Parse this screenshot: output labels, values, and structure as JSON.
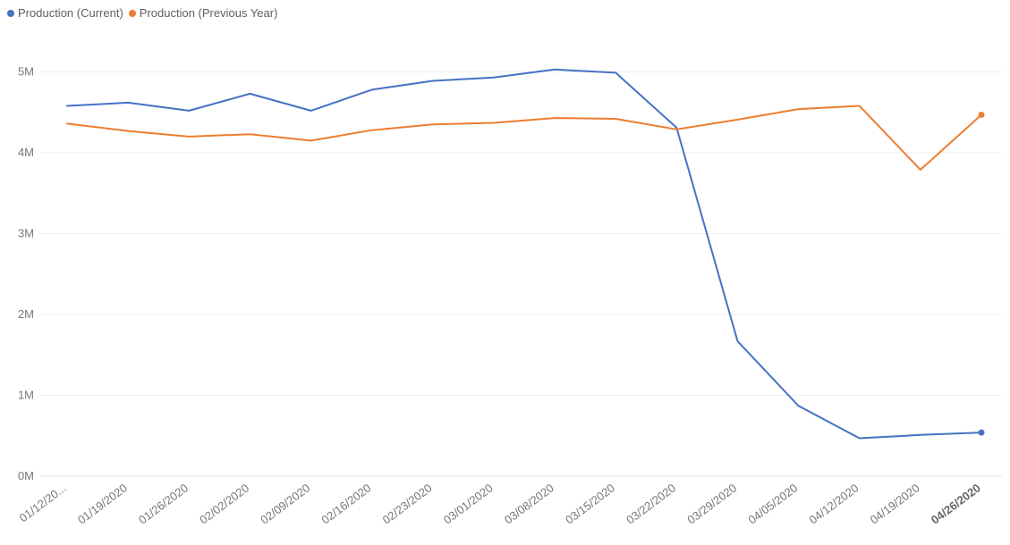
{
  "colors": {
    "current": "#4472c4",
    "previous": "#ed7d31",
    "grid": "#eeeeee",
    "tick_text": "#777777",
    "legend_text": "#605e5c"
  },
  "legend": {
    "items": [
      {
        "label": "Production (Current)",
        "color": "#4472c4"
      },
      {
        "label": "Production (Previous Year)",
        "color": "#ed7d31"
      }
    ]
  },
  "chart_data": {
    "type": "line",
    "categories": [
      "01/12/20...",
      "01/19/2020",
      "01/26/2020",
      "02/02/2020",
      "02/09/2020",
      "02/16/2020",
      "02/23/2020",
      "03/01/2020",
      "03/08/2020",
      "03/15/2020",
      "03/22/2020",
      "03/29/2020",
      "04/05/2020",
      "04/12/2020",
      "04/19/2020",
      "04/26/2020"
    ],
    "highlighted_category": "04/26/2020",
    "series": [
      {
        "name": "Production (Current)",
        "color": "#4472c4",
        "values": [
          4.58,
          4.62,
          4.52,
          4.73,
          4.52,
          4.78,
          4.89,
          4.93,
          5.03,
          4.99,
          4.31,
          1.67,
          0.87,
          0.47,
          0.51,
          0.54
        ]
      },
      {
        "name": "Production (Previous Year)",
        "color": "#ed7d31",
        "values": [
          4.36,
          4.27,
          4.2,
          4.23,
          4.15,
          4.28,
          4.35,
          4.37,
          4.43,
          4.42,
          4.29,
          4.41,
          4.54,
          4.58,
          3.79,
          4.47
        ]
      }
    ],
    "y_ticks": [
      "0M",
      "1M",
      "2M",
      "3M",
      "4M",
      "5M"
    ],
    "ylim": [
      0,
      5.5
    ],
    "unit": "millions",
    "grid": true,
    "legend_position": "top-left",
    "title": "",
    "xlabel": "",
    "ylabel": ""
  }
}
